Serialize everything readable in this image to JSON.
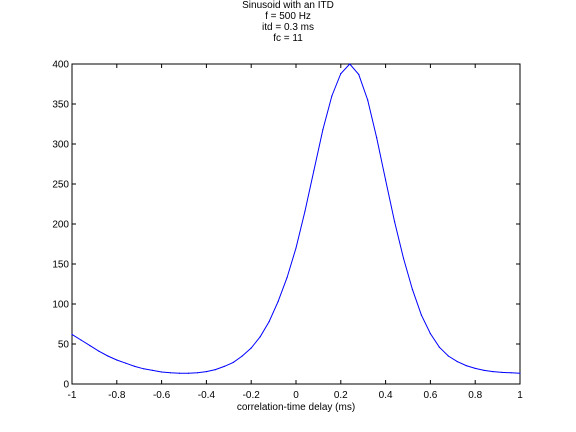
{
  "chart_data": {
    "type": "line",
    "title_lines": [
      "Sinusoid with an ITD",
      "f = 500 Hz",
      "itd = 0.3 ms",
      "fc = 11"
    ],
    "xlabel": "correlation-time delay (ms)",
    "ylabel": "",
    "xlim": [
      -1,
      1
    ],
    "ylim": [
      0,
      400
    ],
    "xticks": [
      -1,
      -0.8,
      -0.6,
      -0.4,
      -0.2,
      0,
      0.2,
      0.4,
      0.6,
      0.8,
      1
    ],
    "xtick_labels": [
      "-1",
      "-0.8",
      "-0.6",
      "-0.4",
      "-0.2",
      "0",
      "0.2",
      "0.4",
      "0.6",
      "0.8",
      "1"
    ],
    "yticks": [
      0,
      50,
      100,
      150,
      200,
      250,
      300,
      350,
      400
    ],
    "ytick_labels": [
      "0",
      "50",
      "100",
      "150",
      "200",
      "250",
      "300",
      "350",
      "400"
    ],
    "grid": false,
    "legend": "none",
    "line_color": "#0000ff",
    "series": [
      {
        "x": [
          -1.0,
          -0.96,
          -0.92,
          -0.88,
          -0.84,
          -0.8,
          -0.76,
          -0.72,
          -0.68,
          -0.64,
          -0.6,
          -0.56,
          -0.52,
          -0.48,
          -0.44,
          -0.4,
          -0.36,
          -0.32,
          -0.28,
          -0.24,
          -0.2,
          -0.16,
          -0.12,
          -0.08,
          -0.04,
          0.0,
          0.04,
          0.08,
          0.12,
          0.16,
          0.2,
          0.24,
          0.28,
          0.32,
          0.36,
          0.4,
          0.44,
          0.48,
          0.52,
          0.56,
          0.6,
          0.64,
          0.68,
          0.72,
          0.76,
          0.8,
          0.84,
          0.88,
          0.92,
          0.96,
          1.0
        ],
        "y": [
          62,
          55,
          48,
          41,
          35,
          30,
          26,
          22,
          19,
          17,
          15,
          14,
          13.5,
          13.5,
          14,
          15.5,
          18,
          22,
          27,
          35,
          45,
          59,
          78,
          103,
          133,
          170,
          216,
          267,
          318,
          360,
          388,
          400,
          387,
          355,
          308,
          255,
          203,
          157,
          118,
          86,
          63,
          46,
          35,
          28,
          23,
          19.5,
          17,
          15.5,
          14.5,
          14,
          13.5
        ]
      }
    ]
  }
}
